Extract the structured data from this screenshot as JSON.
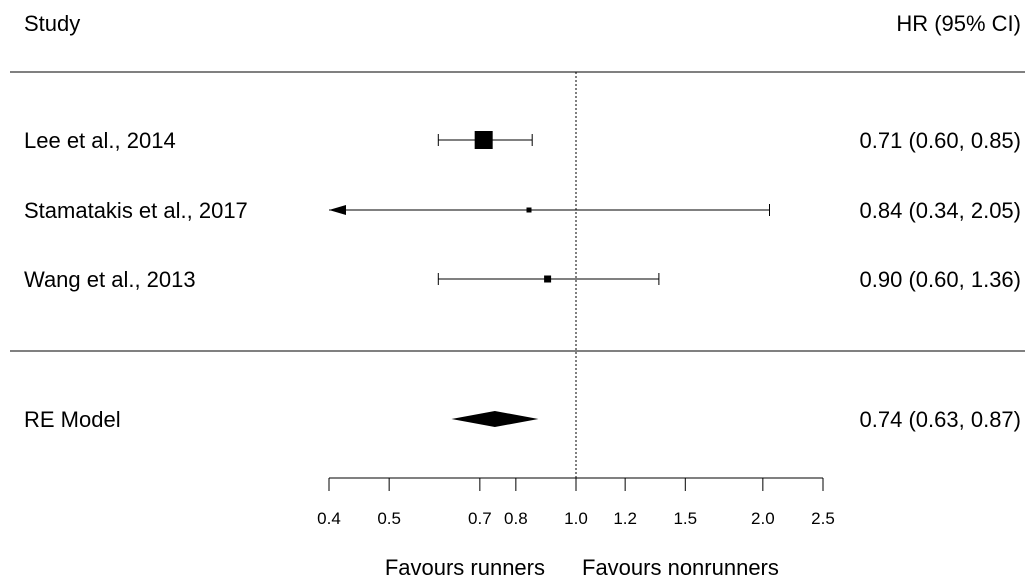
{
  "chart_data": {
    "type": "forest",
    "header": {
      "study": "Study",
      "estimate": "HR (95% CI)"
    },
    "studies": [
      {
        "label": "Lee et al., 2014",
        "hr": 0.71,
        "lower": 0.6,
        "upper": 0.85,
        "text": "0.71 (0.60, 0.85)",
        "weight": 1.0,
        "clipped_lower": false
      },
      {
        "label": "Stamatakis et al., 2017",
        "hr": 0.84,
        "lower": 0.34,
        "upper": 2.05,
        "text": "0.84 (0.34, 2.05)",
        "weight": 0.03,
        "clipped_lower": true
      },
      {
        "label": "Wang et al., 2013",
        "hr": 0.9,
        "lower": 0.6,
        "upper": 1.36,
        "text": "0.90 (0.60, 1.36)",
        "weight": 0.14,
        "clipped_lower": false
      }
    ],
    "pooled": {
      "label": "RE Model",
      "hr": 0.74,
      "lower": 0.63,
      "upper": 0.87,
      "text": "0.74 (0.63, 0.87)"
    },
    "x_axis": {
      "scale": "log",
      "range": [
        0.4,
        2.5
      ],
      "ticks": [
        0.4,
        0.5,
        0.7,
        0.8,
        1.0,
        1.2,
        1.5,
        2.0,
        2.5
      ],
      "tick_labels": [
        "0.4",
        "0.5",
        "0.7",
        "0.8",
        "1.0",
        "1.2",
        "1.5",
        "2.0",
        "2.5"
      ],
      "reference_line": 1.0
    },
    "xlabel_left": "Favours runners",
    "xlabel_right": "Favours nonrunners"
  }
}
